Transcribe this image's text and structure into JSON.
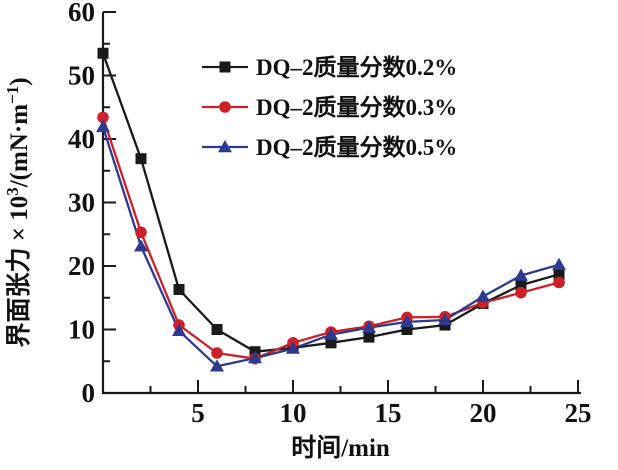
{
  "chart_data": {
    "type": "line",
    "title": "",
    "xlabel": "时间/min",
    "ylabel_text": "界面张力 × 10³/(mN·m⁻¹)",
    "ylabel_parts": [
      {
        "text": "界面张力 × 10",
        "sup": false
      },
      {
        "text": "3",
        "sup": true
      },
      {
        "text": "/(mN·m",
        "sup": false
      },
      {
        "text": "−1",
        "sup": true
      },
      {
        "text": ")",
        "sup": false
      }
    ],
    "xlim": [
      0,
      25
    ],
    "ylim": [
      0,
      60
    ],
    "x_labeled_ticks": [
      5,
      10,
      15,
      20,
      25
    ],
    "y_labeled_ticks": [
      0,
      10,
      20,
      30,
      40,
      50,
      60
    ],
    "x_minor_step": 2.5,
    "x_major_step": 5,
    "y_minor_step": 5,
    "y_major_step": 10,
    "grid": false,
    "legend_position": "upper right",
    "x": [
      0,
      2,
      4,
      6,
      8,
      10,
      12,
      14,
      16,
      18,
      20,
      22,
      24
    ],
    "series": [
      {
        "name": "DQ–2质量分数0.2%",
        "color": "#1a1a1a",
        "marker": "square",
        "values": [
          53.5,
          36.9,
          16.3,
          10.0,
          6.5,
          7.1,
          7.9,
          8.8,
          10.0,
          10.7,
          14.1,
          17.0,
          18.7
        ]
      },
      {
        "name": "DQ–2质量分数0.3%",
        "color": "#ce2029",
        "marker": "circle",
        "values": [
          43.4,
          25.3,
          10.7,
          6.3,
          5.4,
          7.9,
          9.6,
          10.5,
          11.9,
          12.0,
          14.2,
          15.8,
          17.4
        ]
      },
      {
        "name": "DQ–2质量分数0.5%",
        "color": "#2c3a90",
        "marker": "triangle",
        "values": [
          41.9,
          23.1,
          9.8,
          4.2,
          5.5,
          7.0,
          9.2,
          10.3,
          11.2,
          11.5,
          15.2,
          18.5,
          20.2
        ]
      }
    ],
    "colors": {
      "axis": "#1a1a1a",
      "background": "#ffffff"
    }
  }
}
